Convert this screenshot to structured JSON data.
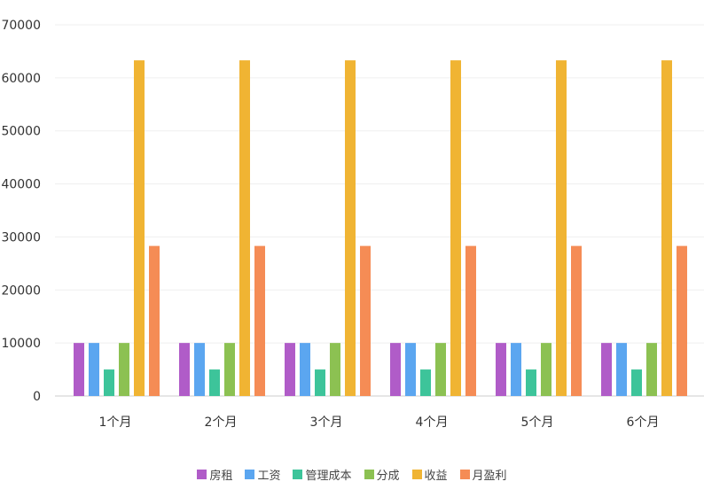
{
  "chart_data": {
    "type": "bar",
    "title": "",
    "xlabel": "",
    "ylabel": "",
    "ylim": [
      0,
      70000
    ],
    "yticks": [
      "0",
      "10000",
      "20000",
      "30000",
      "40000",
      "50000",
      "60000",
      "70000"
    ],
    "grid": true,
    "legend_position": "bottom",
    "categories": [
      "1个月",
      "2个月",
      "3个月",
      "4个月",
      "5个月",
      "6个月"
    ],
    "series": [
      {
        "name": "房租",
        "color": "#b05cc8",
        "values": [
          10000,
          10000,
          10000,
          10000,
          10000,
          10000
        ]
      },
      {
        "name": "工资",
        "color": "#5ba6f0",
        "values": [
          10000,
          10000,
          10000,
          10000,
          10000,
          10000
        ]
      },
      {
        "name": "管理成本",
        "color": "#3dc49a",
        "values": [
          5000,
          5000,
          5000,
          5000,
          5000,
          5000
        ]
      },
      {
        "name": "分成",
        "color": "#8cc152",
        "values": [
          10000,
          10000,
          10000,
          10000,
          10000,
          10000
        ]
      },
      {
        "name": "收益",
        "color": "#f0b433",
        "values": [
          63300,
          63300,
          63300,
          63300,
          63300,
          63300
        ]
      },
      {
        "name": "月盈利",
        "color": "#f58c55",
        "values": [
          28300,
          28300,
          28300,
          28300,
          28300,
          28300
        ]
      }
    ]
  }
}
